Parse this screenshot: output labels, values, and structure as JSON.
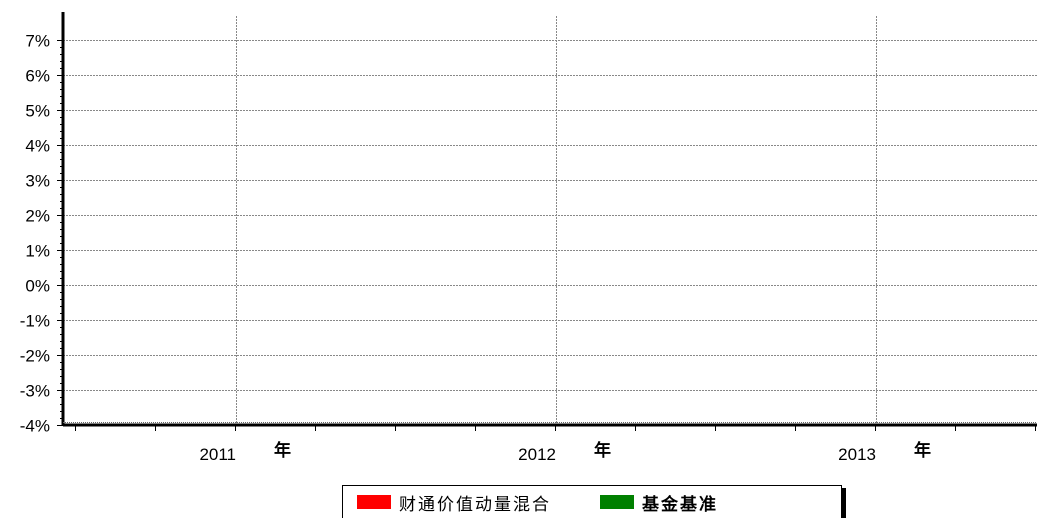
{
  "chart_data": {
    "type": "line",
    "title": "",
    "xlabel": "",
    "ylabel": "",
    "ylim": [
      -4,
      7
    ],
    "y_ticks": [
      "7%",
      "6%",
      "5%",
      "4%",
      "3%",
      "2%",
      "1%",
      "0%",
      "-1%",
      "-2%",
      "-3%",
      "-4%"
    ],
    "y_tick_values": [
      7,
      6,
      5,
      4,
      3,
      2,
      1,
      0,
      -1,
      -2,
      -3,
      -4
    ],
    "x_ticks": [
      {
        "year": "2011",
        "unit": "年"
      },
      {
        "year": "2012",
        "unit": "年"
      },
      {
        "year": "2013",
        "unit": "年"
      }
    ],
    "grid": true,
    "legend_position": "bottom",
    "series": [
      {
        "name": "财通价值动量混合",
        "color": "#ff0000",
        "values": []
      },
      {
        "name": "基金基准",
        "color": "#008000",
        "values": []
      }
    ]
  },
  "legend": {
    "items": [
      {
        "label": "财通价值动量混合",
        "color": "#ff0000",
        "bold": false
      },
      {
        "label": "基金基准",
        "color": "#008000",
        "bold": true
      }
    ]
  }
}
